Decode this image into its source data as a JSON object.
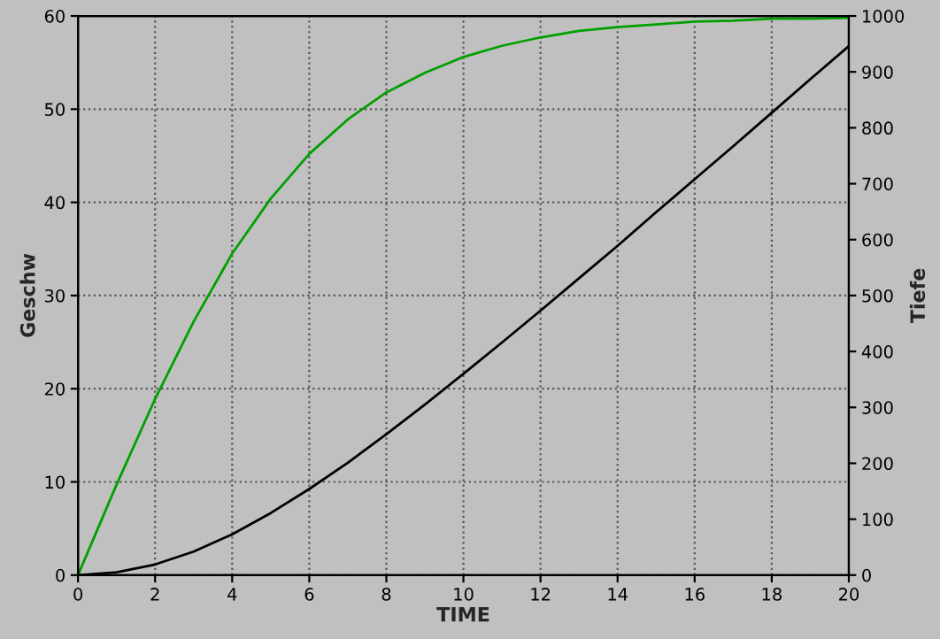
{
  "chart_data": {
    "type": "line",
    "xlabel": "TIME",
    "ylabel": "Geschw",
    "y2label": "Tiefe",
    "x": [
      0,
      1,
      2,
      3,
      4,
      5,
      6,
      7,
      8,
      9,
      10,
      11,
      12,
      13,
      14,
      15,
      16,
      17,
      18,
      19,
      20
    ],
    "series": [
      {
        "color": "#00a000",
        "values": [
          0,
          9.7,
          18.9,
          27.2,
          34.5,
          40.4,
          45.2,
          48.9,
          51.8,
          53.9,
          55.6,
          56.8,
          57.7,
          58.4,
          58.8,
          59.1,
          59.4,
          59.5,
          59.7,
          59.7,
          59.8
        ]
      },
      {
        "color": "#000000",
        "axis": "y2",
        "values": [
          0,
          5,
          19,
          42,
          73,
          111,
          154,
          201,
          252,
          305,
          360,
          416,
          473,
          531,
          589,
          649,
          708,
          767,
          827,
          887,
          946
        ]
      }
    ],
    "xlim": [
      0,
      20
    ],
    "xticks": [
      0,
      2,
      4,
      6,
      8,
      10,
      12,
      14,
      16,
      18,
      20
    ],
    "ylim": [
      0,
      60
    ],
    "yticks": [
      0,
      10,
      20,
      30,
      40,
      50,
      60
    ],
    "y2lim": [
      0,
      1000
    ],
    "y2ticks": [
      0,
      100,
      200,
      300,
      400,
      500,
      600,
      700,
      800,
      900,
      1000
    ],
    "grid": true,
    "legend": false,
    "marker": "none",
    "line_style": "solid"
  }
}
